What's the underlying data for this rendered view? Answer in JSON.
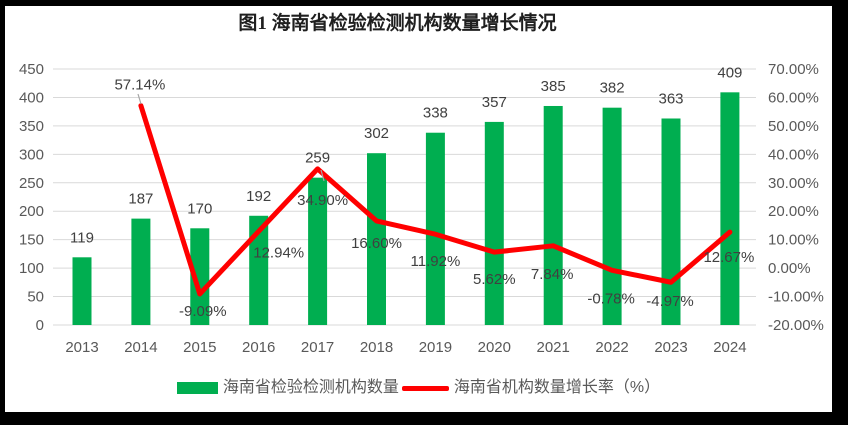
{
  "title": "图1 海南省检验检测机构数量增长情况",
  "colors": {
    "bar": "#00AE50",
    "line": "#FF0000",
    "grid": "#D9D9D9",
    "axis_text": "#595959",
    "data_label": "#404040",
    "leader": "#A6A6A6",
    "frame": "#000000",
    "background": "#FFFFFF"
  },
  "legend": {
    "items": [
      {
        "label": "海南省检验检测机构数量",
        "marker": "bar",
        "color": "#00AE50"
      },
      {
        "label": "海南省机构数量增长率（%）",
        "marker": "line",
        "color": "#FF0000"
      }
    ]
  },
  "chart_data": {
    "type": "combo-bar-line",
    "title": "图1 海南省检验检测机构数量增长情况",
    "categories": [
      "2013",
      "2014",
      "2015",
      "2016",
      "2017",
      "2018",
      "2019",
      "2020",
      "2021",
      "2022",
      "2023",
      "2024"
    ],
    "series": [
      {
        "name": "海南省检验检测机构数量",
        "type": "bar",
        "axis": "left",
        "color": "#00AE50",
        "values": [
          119,
          187,
          170,
          192,
          259,
          302,
          338,
          357,
          385,
          382,
          363,
          409
        ]
      },
      {
        "name": "海南省机构数量增长率（%）",
        "type": "line",
        "axis": "right",
        "color": "#FF0000",
        "values": [
          null,
          57.14,
          -9.09,
          12.94,
          34.9,
          16.6,
          11.92,
          5.62,
          7.84,
          -0.78,
          -4.97,
          12.67
        ],
        "labels": [
          null,
          "57.14%",
          "-9.09%",
          "12.94%",
          "34.90%",
          "16.60%",
          "11.92%",
          "5.62%",
          "7.84%",
          "-0.78%",
          "-4.97%",
          "12.67%"
        ],
        "label_offsets": [
          null,
          [
            -1,
            -21
          ],
          [
            3,
            17
          ],
          [
            20,
            21
          ],
          [
            5,
            31
          ],
          [
            0,
            22
          ],
          [
            0,
            27
          ],
          [
            0,
            27
          ],
          [
            -1,
            28
          ],
          [
            -1,
            28
          ],
          [
            -1,
            19
          ],
          [
            -1,
            25
          ]
        ]
      }
    ],
    "left_axis": {
      "min": 0,
      "max": 450,
      "step": 50,
      "tick_labels": [
        "0",
        "50",
        "100",
        "150",
        "200",
        "250",
        "300",
        "350",
        "400",
        "450"
      ]
    },
    "right_axis": {
      "min": -20,
      "max": 70,
      "step": 10,
      "tick_labels": [
        "-20.00%",
        "-10.00%",
        "0.00%",
        "10.00%",
        "20.00%",
        "30.00%",
        "40.00%",
        "50.00%",
        "60.00%",
        "70.00%"
      ]
    },
    "grid": true,
    "legend_position": "bottom"
  }
}
